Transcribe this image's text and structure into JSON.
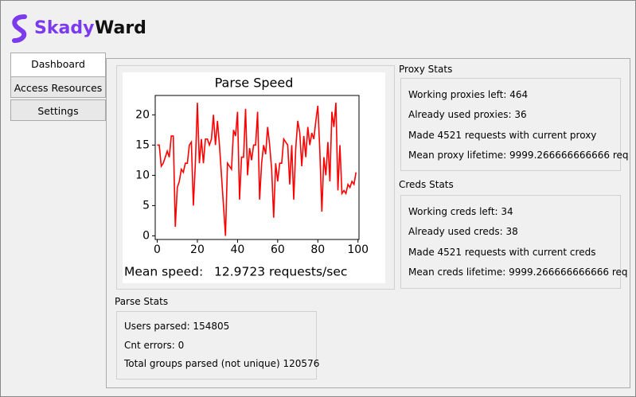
{
  "header": {
    "brand_first": "Skady",
    "brand_second": "Ward"
  },
  "tabs": [
    "Dashboard",
    "Access Resources",
    "Settings"
  ],
  "chart_data": {
    "type": "line",
    "title": "Parse Speed",
    "x": [
      0,
      1,
      2,
      3,
      4,
      5,
      6,
      7,
      8,
      9,
      10,
      11,
      12,
      13,
      14,
      15,
      16,
      17,
      18,
      19,
      20,
      21,
      22,
      23,
      24,
      25,
      26,
      27,
      28,
      29,
      30,
      31,
      32,
      33,
      34,
      35,
      36,
      37,
      38,
      39,
      40,
      41,
      42,
      43,
      44,
      45,
      46,
      47,
      48,
      49,
      50,
      51,
      52,
      53,
      54,
      55,
      56,
      57,
      58,
      59,
      60,
      61,
      62,
      63,
      64,
      65,
      66,
      67,
      68,
      69,
      70,
      71,
      72,
      73,
      74,
      75,
      76,
      77,
      78,
      79,
      80,
      81,
      82,
      83,
      84,
      85,
      86,
      87,
      88,
      89,
      90,
      91,
      92,
      93,
      94,
      95,
      96,
      97,
      98,
      99
    ],
    "series": [
      {
        "color": "#ff0000",
        "values": [
          15,
          15,
          11.5,
          12,
          13,
          14,
          13,
          16.5,
          16.5,
          1.5,
          8,
          9,
          11,
          10.5,
          12,
          12,
          15,
          15.5,
          5,
          12,
          22,
          12,
          16,
          12,
          16,
          16,
          15,
          16,
          20,
          15,
          19,
          15,
          10,
          5,
          0,
          12,
          11.5,
          11,
          17.5,
          16.5,
          20.5,
          6,
          13,
          13,
          21,
          10,
          14.5,
          12.5,
          15,
          15,
          20.5,
          6,
          12,
          15,
          13.5,
          18,
          15,
          11,
          3,
          12,
          9,
          12,
          12,
          16,
          15.5,
          15,
          8.5,
          15,
          6,
          14.5,
          19,
          17,
          11.5,
          16.5,
          13,
          18,
          15,
          17,
          16,
          19,
          21.5,
          14,
          4,
          13,
          10,
          15.5,
          9,
          20.5,
          18,
          22,
          7.5,
          15,
          7,
          7.5,
          7,
          8.5,
          8,
          9,
          8.5,
          10.5
        ]
      }
    ],
    "xlim": [
      -1,
      100.5
    ],
    "ylim": [
      -0.6,
      23.2
    ],
    "xticks": [
      0,
      20,
      40,
      60,
      80,
      100
    ],
    "yticks": [
      0,
      5,
      10,
      15,
      20
    ]
  },
  "mean_speed": {
    "label": "Mean speed:",
    "value": "12.9723 requests/sec"
  },
  "proxy_stats": {
    "title": "Proxy Stats",
    "lines": [
      "Working proxies left: 464",
      "Already used proxies: 36",
      "Made 4521 requests with current proxy",
      "Mean proxy lifetime: 9999.266666666666 req"
    ]
  },
  "creds_stats": {
    "title": "Creds Stats",
    "lines": [
      "Working creds left: 34",
      "Already used creds: 38",
      "Made 4521 requests with current creds",
      "Mean creds lifetime: 9999.266666666666 req"
    ]
  },
  "parse_stats": {
    "title": "Parse Stats",
    "lines": [
      "Users parsed: 154805",
      "Cnt errors: 0",
      "Total groups parsed (not unique) 120576"
    ]
  }
}
